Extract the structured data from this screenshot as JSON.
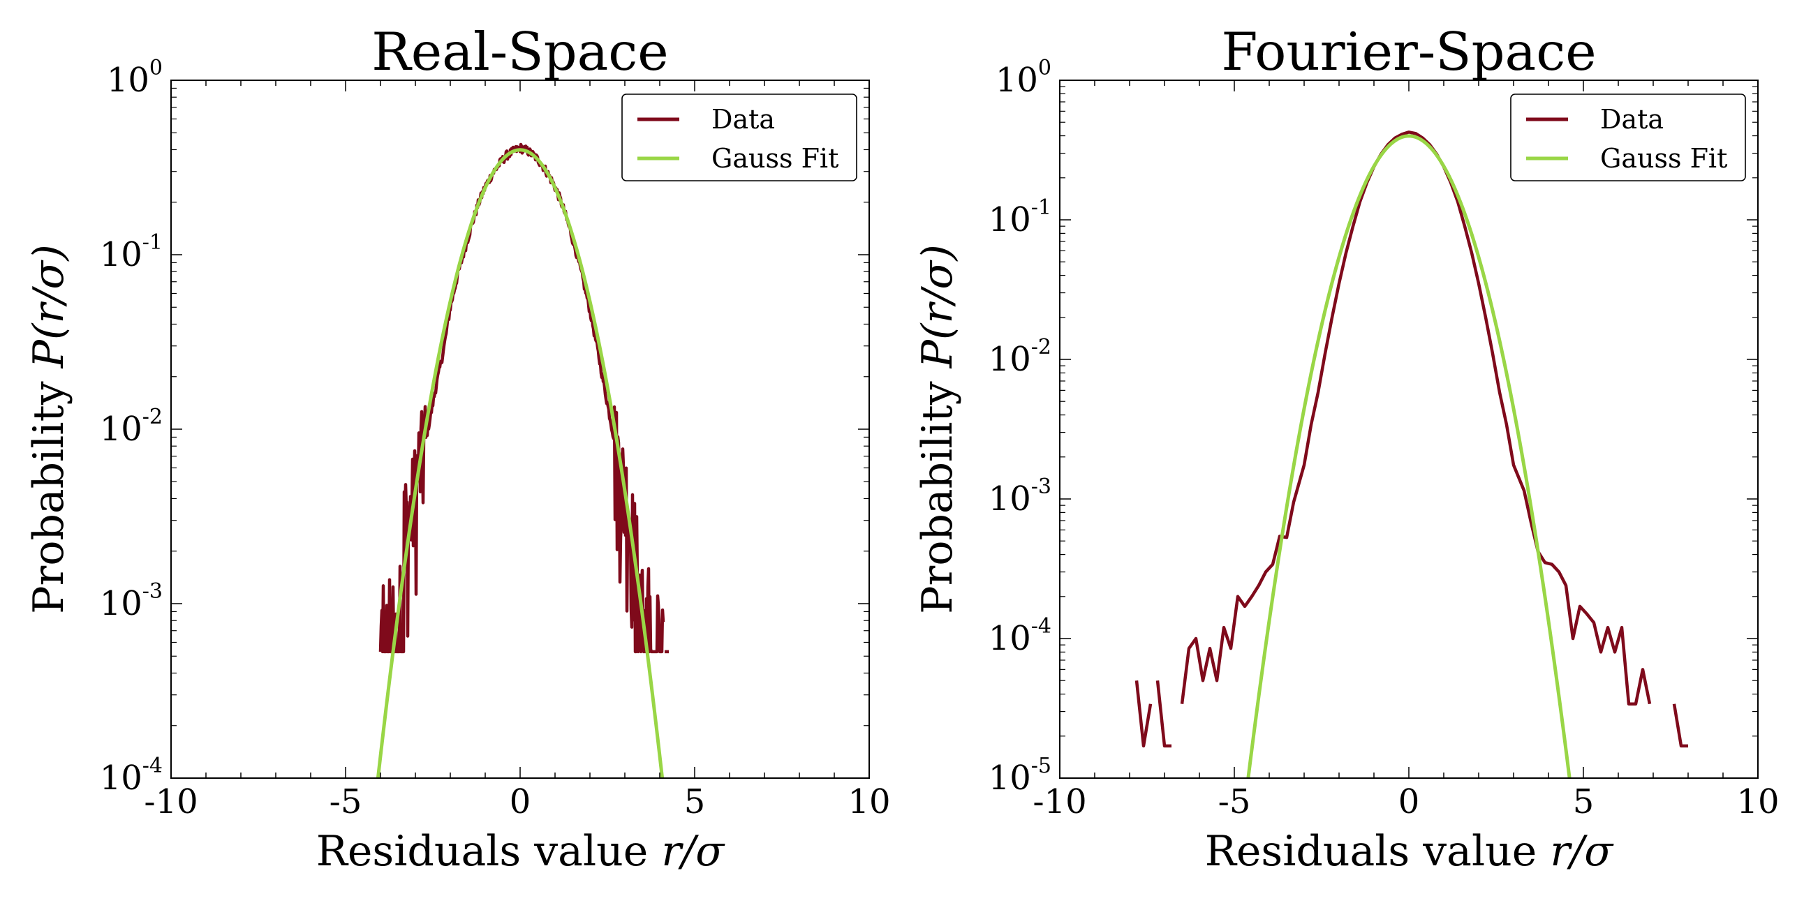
{
  "chart_data": [
    {
      "type": "line",
      "title": "Real-Space",
      "xlabel_text": "Residuals value ",
      "xlabel_math": "r/σ",
      "ylabel_text": "Probability ",
      "ylabel_math": "P(r/σ)",
      "xlim": [
        -10,
        10
      ],
      "ylim": [
        0.0001,
        1
      ],
      "yscale": "log",
      "xticks": [
        -10,
        -5,
        0,
        5,
        10
      ],
      "xtick_labels": [
        "-10",
        "-5",
        "0",
        "5",
        "10"
      ],
      "yticks": [
        0,
        -1,
        -2,
        -3,
        -4
      ],
      "ytick_labels": [
        {
          "base": "10",
          "exp": "0"
        },
        {
          "base": "10",
          "exp": "-1"
        },
        {
          "base": "10",
          "exp": "-2"
        },
        {
          "base": "10",
          "exp": "-3"
        },
        {
          "base": "10",
          "exp": "-4"
        }
      ],
      "legend": {
        "position": "upper right",
        "entries": [
          "Data",
          "Gauss Fit"
        ]
      },
      "series": [
        {
          "name": "Data",
          "color": "#7f0a1b",
          "style": "noisy_histogram",
          "floor": 0.00053,
          "x_range": [
            -4.0,
            4.1
          ],
          "points": [
            [
              -4.0,
              0.00053
            ],
            [
              -3.9,
              0.0011
            ],
            [
              -3.8,
              0.00053
            ],
            [
              -3.7,
              0.0011
            ],
            [
              -3.6,
              0.00053
            ],
            [
              -3.5,
              0.0016
            ],
            [
              -3.4,
              0.0021
            ],
            [
              -3.3,
              0.0032
            ],
            [
              -3.2,
              0.0027
            ],
            [
              -3.1,
              0.0037
            ],
            [
              -3.0,
              0.0048
            ],
            [
              -2.9,
              0.0064
            ],
            [
              -2.8,
              0.0072
            ],
            [
              -2.6,
              0.011
            ],
            [
              -2.4,
              0.018
            ],
            [
              -2.2,
              0.028
            ],
            [
              -2.0,
              0.05
            ],
            [
              -1.8,
              0.075
            ],
            [
              -1.6,
              0.105
            ],
            [
              -1.4,
              0.145
            ],
            [
              -1.2,
              0.195
            ],
            [
              -1.0,
              0.245
            ],
            [
              -0.8,
              0.29
            ],
            [
              -0.6,
              0.33
            ],
            [
              -0.4,
              0.37
            ],
            [
              -0.2,
              0.39
            ],
            [
              0.0,
              0.41
            ],
            [
              0.2,
              0.395
            ],
            [
              0.4,
              0.37
            ],
            [
              0.6,
              0.335
            ],
            [
              0.8,
              0.29
            ],
            [
              1.0,
              0.245
            ],
            [
              1.2,
              0.195
            ],
            [
              1.4,
              0.145
            ],
            [
              1.6,
              0.105
            ],
            [
              1.8,
              0.072
            ],
            [
              2.0,
              0.048
            ],
            [
              2.2,
              0.03
            ],
            [
              2.4,
              0.018
            ],
            [
              2.6,
              0.011
            ],
            [
              2.8,
              0.0068
            ],
            [
              3.0,
              0.0045
            ],
            [
              3.1,
              0.0037
            ],
            [
              3.2,
              0.0027
            ],
            [
              3.3,
              0.0021
            ],
            [
              3.4,
              0.0016
            ],
            [
              3.5,
              0.0011
            ],
            [
              3.6,
              0.00053
            ],
            [
              3.7,
              0.0011
            ],
            [
              3.8,
              0.00053
            ],
            [
              3.9,
              0.0011
            ],
            [
              4.0,
              0.00053
            ],
            [
              4.1,
              0.00053
            ]
          ]
        },
        {
          "name": "Gauss Fit",
          "color": "#99d646",
          "style": "gaussian",
          "mu": 0,
          "sigma": 1,
          "amplitude": 0.3989,
          "x_range": [
            -5,
            5
          ]
        }
      ]
    },
    {
      "type": "line",
      "title": "Fourier-Space",
      "xlabel_text": "Residuals value ",
      "xlabel_math": "r/σ",
      "ylabel_text": "Probability ",
      "ylabel_math": "P(r/σ)",
      "xlim": [
        -10,
        10
      ],
      "ylim": [
        1e-05,
        1
      ],
      "yscale": "log",
      "xticks": [
        -10,
        -5,
        0,
        5,
        10
      ],
      "xtick_labels": [
        "-10",
        "-5",
        "0",
        "5",
        "10"
      ],
      "yticks": [
        0,
        -1,
        -2,
        -3,
        -4,
        -5
      ],
      "ytick_labels": [
        {
          "base": "10",
          "exp": "0"
        },
        {
          "base": "10",
          "exp": "-1"
        },
        {
          "base": "10",
          "exp": "-2"
        },
        {
          "base": "10",
          "exp": "-3"
        },
        {
          "base": "10",
          "exp": "-4"
        },
        {
          "base": "10",
          "exp": "-5"
        }
      ],
      "legend": {
        "position": "upper right",
        "entries": [
          "Data",
          "Gauss Fit"
        ]
      },
      "series": [
        {
          "name": "Data",
          "color": "#7f0a1b",
          "style": "line",
          "segments": [
            [
              [
                -7.8,
                5e-05
              ],
              [
                -7.6,
                1.7e-05
              ],
              [
                -7.4,
                3.4e-05
              ]
            ],
            [
              [
                -7.2,
                5e-05
              ],
              [
                -7.0,
                1.7e-05
              ],
              [
                -6.8,
                1.7e-05
              ]
            ],
            [
              [
                -6.5,
                3.4e-05
              ],
              [
                -6.3,
                8.5e-05
              ],
              [
                -6.1,
                0.0001
              ],
              [
                -5.9,
                5e-05
              ],
              [
                -5.7,
                8.5e-05
              ],
              [
                -5.5,
                5e-05
              ],
              [
                -5.3,
                0.00012
              ],
              [
                -5.1,
                8.5e-05
              ],
              [
                -4.9,
                0.0002
              ],
              [
                -4.7,
                0.00017
              ],
              [
                -4.5,
                0.0002
              ],
              [
                -4.3,
                0.00024
              ],
              [
                -4.1,
                0.0003
              ],
              [
                -3.9,
                0.00034
              ],
              [
                -3.7,
                0.00054
              ],
              [
                -3.5,
                0.00053
              ],
              [
                -3.3,
                0.00095
              ],
              [
                -3.0,
                0.00175
              ],
              [
                -2.8,
                0.0034
              ],
              [
                -2.6,
                0.0058
              ],
              [
                -2.4,
                0.011
              ],
              [
                -2.2,
                0.02
              ],
              [
                -2.0,
                0.035
              ],
              [
                -1.8,
                0.058
              ],
              [
                -1.6,
                0.09
              ],
              [
                -1.4,
                0.135
              ],
              [
                -1.2,
                0.185
              ],
              [
                -1.0,
                0.24
              ],
              [
                -0.8,
                0.295
              ],
              [
                -0.6,
                0.345
              ],
              [
                -0.4,
                0.385
              ],
              [
                -0.2,
                0.41
              ],
              [
                0.0,
                0.425
              ],
              [
                0.2,
                0.415
              ],
              [
                0.4,
                0.385
              ],
              [
                0.6,
                0.345
              ],
              [
                0.8,
                0.295
              ],
              [
                1.0,
                0.24
              ],
              [
                1.2,
                0.185
              ],
              [
                1.4,
                0.135
              ],
              [
                1.6,
                0.09
              ],
              [
                1.8,
                0.058
              ],
              [
                2.0,
                0.035
              ],
              [
                2.2,
                0.02
              ],
              [
                2.4,
                0.011
              ],
              [
                2.6,
                0.0058
              ],
              [
                2.8,
                0.0034
              ],
              [
                3.0,
                0.00175
              ],
              [
                3.3,
                0.00115
              ],
              [
                3.5,
                0.00068
              ],
              [
                3.7,
                0.00042
              ],
              [
                3.9,
                0.00035
              ],
              [
                4.1,
                0.00034
              ],
              [
                4.3,
                0.0003
              ],
              [
                4.5,
                0.00024
              ],
              [
                4.7,
                0.0001
              ],
              [
                4.9,
                0.00017
              ],
              [
                5.1,
                0.00015
              ],
              [
                5.3,
                0.00013
              ],
              [
                5.5,
                8e-05
              ],
              [
                5.7,
                0.00012
              ],
              [
                5.9,
                8e-05
              ],
              [
                6.1,
                0.00012
              ],
              [
                6.3,
                3.4e-05
              ],
              [
                6.5,
                3.4e-05
              ],
              [
                6.7,
                6e-05
              ],
              [
                6.9,
                3.4e-05
              ]
            ],
            [
              [
                7.6,
                3.4e-05
              ],
              [
                7.8,
                1.7e-05
              ],
              [
                8.0,
                1.7e-05
              ]
            ]
          ]
        },
        {
          "name": "Gauss Fit",
          "color": "#99d646",
          "style": "gaussian",
          "mu": 0,
          "sigma": 1,
          "amplitude": 0.3989,
          "x_range": [
            -5,
            5
          ]
        }
      ]
    }
  ]
}
